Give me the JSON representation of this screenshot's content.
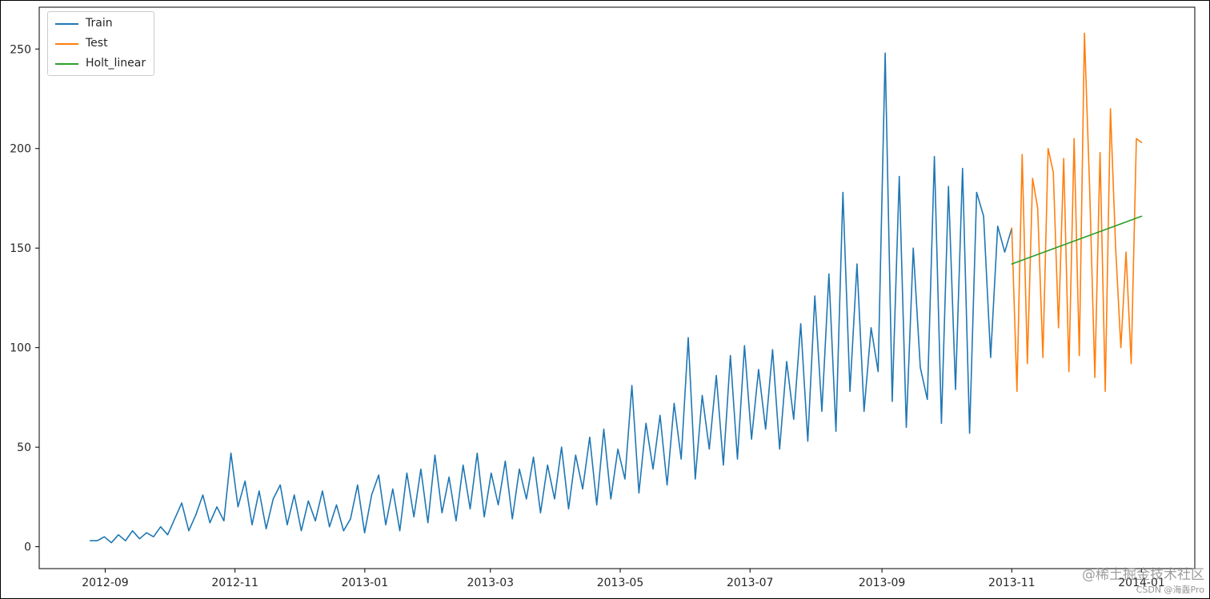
{
  "figure": {
    "background": "#ffffff",
    "border_color": "#000000",
    "axes_edge_color": "#000000",
    "tick_label_color": "#262626"
  },
  "watermark": {
    "line1": "@稀土掘金技术社区",
    "line2": "CSDN @海轰Pro"
  },
  "chart_data": {
    "type": "line",
    "title": "",
    "xlabel": "",
    "ylabel": "",
    "grid": false,
    "legend_position": "upper left",
    "legend_entries": [
      "Train",
      "Test",
      "Holt_linear"
    ],
    "xlim": [
      "2012-08-01",
      "2014-01-26"
    ],
    "ylim": [
      -11,
      271
    ],
    "y_ticks": [
      0,
      50,
      100,
      150,
      200,
      250
    ],
    "x_ticks": [
      {
        "date": "2012-09-01",
        "label": "2012-09"
      },
      {
        "date": "2012-11-01",
        "label": "2012-11"
      },
      {
        "date": "2013-01-01",
        "label": "2013-01"
      },
      {
        "date": "2013-03-01",
        "label": "2013-03"
      },
      {
        "date": "2013-05-01",
        "label": "2013-05"
      },
      {
        "date": "2013-07-01",
        "label": "2013-07"
      },
      {
        "date": "2013-09-01",
        "label": "2013-09"
      },
      {
        "date": "2013-11-01",
        "label": "2013-11"
      },
      {
        "date": "2014-01-01",
        "label": "2014-01"
      }
    ],
    "series": [
      {
        "name": "Train",
        "color": "#1f77b4",
        "x_start": "2012-08-25",
        "x_end": "2013-11-01",
        "values": [
          3,
          3,
          5,
          2,
          6,
          3,
          8,
          4,
          7,
          5,
          10,
          6,
          14,
          22,
          8,
          16,
          26,
          12,
          20,
          13,
          47,
          20,
          33,
          11,
          28,
          9,
          24,
          31,
          11,
          26,
          8,
          23,
          13,
          28,
          10,
          21,
          8,
          14,
          31,
          7,
          26,
          36,
          11,
          29,
          8,
          37,
          15,
          39,
          12,
          46,
          17,
          35,
          13,
          41,
          19,
          47,
          15,
          37,
          21,
          43,
          14,
          39,
          24,
          45,
          17,
          41,
          24,
          50,
          19,
          46,
          29,
          55,
          21,
          59,
          24,
          49,
          34,
          81,
          27,
          62,
          39,
          66,
          31,
          72,
          44,
          105,
          34,
          76,
          49,
          86,
          41,
          96,
          44,
          101,
          54,
          89,
          59,
          99,
          49,
          93,
          64,
          112,
          53,
          126,
          68,
          137,
          58,
          178,
          78,
          142,
          68,
          110,
          88,
          248,
          73,
          186,
          60,
          150,
          90,
          74,
          196,
          62,
          181,
          79,
          190,
          57,
          178,
          166,
          95,
          161,
          148,
          160
        ]
      },
      {
        "name": "Test",
        "color": "#ff7f0e",
        "x_start": "2013-11-01",
        "x_end": "2014-01-01",
        "values": [
          160,
          78,
          197,
          92,
          185,
          170,
          95,
          200,
          188,
          110,
          195,
          88,
          205,
          96,
          258,
          180,
          85,
          198,
          78,
          220,
          150,
          100,
          148,
          92,
          205,
          203
        ]
      },
      {
        "name": "Holt_linear",
        "color": "#2ca02c",
        "x_start": "2013-11-01",
        "x_end": "2014-01-01",
        "values": [
          142,
          166
        ]
      }
    ]
  }
}
